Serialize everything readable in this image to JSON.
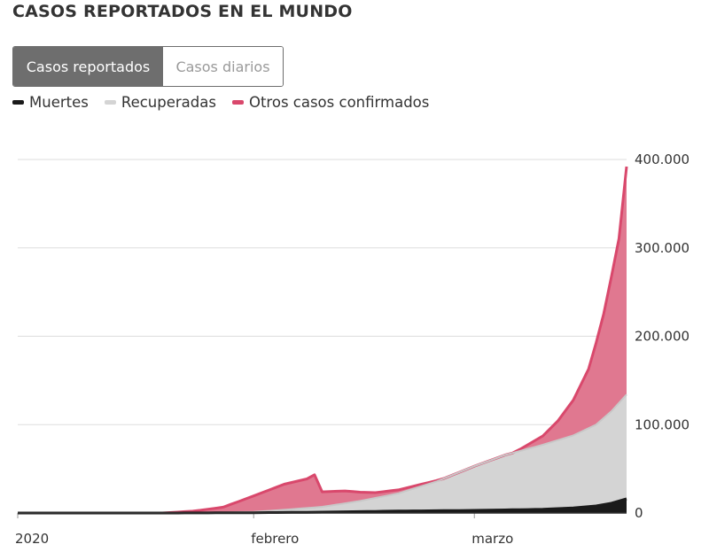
{
  "title": "CASOS REPORTADOS EN EL MUNDO",
  "toggle": {
    "active_label": "Casos reportados",
    "inactive_label": "Casos diarios"
  },
  "colors": {
    "muertes": "#1a1a1a",
    "recuperadas": "#d4d4d4",
    "otros": "#e07890",
    "otros_line": "#d9486c",
    "grid": "#dddddd",
    "toggle_active": "#6e6e6e"
  },
  "chart_data": {
    "type": "area",
    "stacked": true,
    "x_unit": "day",
    "x_start": "2020-01-01",
    "x_end": "2020-03-21",
    "ylim": [
      0,
      400000
    ],
    "yticks": [
      {
        "value": 0,
        "label": "0"
      },
      {
        "value": 100000,
        "label": "100.000"
      },
      {
        "value": 200000,
        "label": "200.000"
      },
      {
        "value": 300000,
        "label": "300.000"
      },
      {
        "value": 400000,
        "label": "400.000"
      }
    ],
    "xticks": [
      {
        "date": "2020-01-01",
        "label": "2020"
      },
      {
        "date": "2020-02-01",
        "label": "febrero"
      },
      {
        "date": "2020-03-01",
        "label": "marzo"
      }
    ],
    "grid": true,
    "legend_position": "top-left",
    "series": [
      {
        "name": "Muertes",
        "points": [
          [
            "2020-01-01",
            0
          ],
          [
            "2020-01-20",
            0
          ],
          [
            "2020-02-01",
            300
          ],
          [
            "2020-02-10",
            1000
          ],
          [
            "2020-02-20",
            2200
          ],
          [
            "2020-03-01",
            3000
          ],
          [
            "2020-03-10",
            4200
          ],
          [
            "2020-03-14",
            5800
          ],
          [
            "2020-03-17",
            8000
          ],
          [
            "2020-03-19",
            11000
          ],
          [
            "2020-03-21",
            16000
          ]
        ]
      },
      {
        "name": "Recuperadas",
        "points": [
          [
            "2020-01-01",
            0
          ],
          [
            "2020-01-25",
            0
          ],
          [
            "2020-02-01",
            1000
          ],
          [
            "2020-02-05",
            3000
          ],
          [
            "2020-02-10",
            6000
          ],
          [
            "2020-02-15",
            12000
          ],
          [
            "2020-02-20",
            20000
          ],
          [
            "2020-02-25",
            33000
          ],
          [
            "2020-03-01",
            50000
          ],
          [
            "2020-03-05",
            62000
          ],
          [
            "2020-03-10",
            73000
          ],
          [
            "2020-03-14",
            82000
          ],
          [
            "2020-03-17",
            92000
          ],
          [
            "2020-03-19",
            104000
          ],
          [
            "2020-03-21",
            118000
          ]
        ]
      },
      {
        "name": "Otros casos confirmados",
        "points": [
          [
            "2020-01-01",
            0
          ],
          [
            "2020-01-20",
            0
          ],
          [
            "2020-01-24",
            2000
          ],
          [
            "2020-01-28",
            6000
          ],
          [
            "2020-02-01",
            18000
          ],
          [
            "2020-02-05",
            29000
          ],
          [
            "2020-02-08",
            33000
          ],
          [
            "2020-02-09",
            37000
          ],
          [
            "2020-02-10",
            17000
          ],
          [
            "2020-02-13",
            14000
          ],
          [
            "2020-02-17",
            6000
          ],
          [
            "2020-02-20",
            4000
          ],
          [
            "2020-02-25",
            1000
          ],
          [
            "2020-03-01",
            -5000
          ],
          [
            "2020-03-04",
            -4000
          ],
          [
            "2020-03-07",
            2000
          ],
          [
            "2020-03-10",
            10000
          ],
          [
            "2020-03-12",
            22000
          ],
          [
            "2020-03-14",
            40000
          ],
          [
            "2020-03-16",
            67000
          ],
          [
            "2020-03-18",
            118000
          ],
          [
            "2020-03-20",
            186000
          ],
          [
            "2020-03-21",
            258000
          ]
        ]
      }
    ]
  }
}
